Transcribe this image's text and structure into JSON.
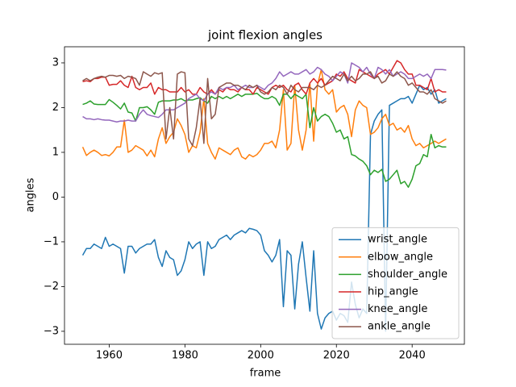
{
  "chart_data": {
    "type": "line",
    "title": "joint flexion angles",
    "xlabel": "frame",
    "ylabel": "angles",
    "x": [
      1953,
      1954,
      1955,
      1956,
      1957,
      1958,
      1959,
      1960,
      1961,
      1962,
      1963,
      1964,
      1965,
      1966,
      1967,
      1968,
      1969,
      1970,
      1971,
      1972,
      1973,
      1974,
      1975,
      1976,
      1977,
      1978,
      1979,
      1980,
      1981,
      1982,
      1983,
      1984,
      1985,
      1986,
      1987,
      1988,
      1989,
      1990,
      1991,
      1992,
      1993,
      1994,
      1995,
      1996,
      1997,
      1998,
      1999,
      2000,
      2001,
      2002,
      2003,
      2004,
      2005,
      2006,
      2007,
      2008,
      2009,
      2010,
      2011,
      2012,
      2013,
      2014,
      2015,
      2016,
      2017,
      2018,
      2019,
      2020,
      2021,
      2022,
      2023,
      2024,
      2025,
      2026,
      2027,
      2028,
      2029,
      2030,
      2031,
      2032,
      2033,
      2034,
      2035,
      2036,
      2037,
      2038,
      2039,
      2040,
      2041,
      2042,
      2043,
      2044,
      2045,
      2046,
      2047,
      2048,
      2049
    ],
    "series": [
      {
        "name": "wrist_angle",
        "color": "#1f77b4",
        "values": [
          -1.3,
          -1.15,
          -1.15,
          -1.05,
          -1.1,
          -1.15,
          -0.9,
          -1.1,
          -1.05,
          -1.1,
          -1.15,
          -1.7,
          -1.1,
          -1.1,
          -1.25,
          -1.15,
          -1.1,
          -1.05,
          -1.05,
          -0.95,
          -1.35,
          -1.55,
          -1.2,
          -1.35,
          -1.4,
          -1.75,
          -1.65,
          -1.4,
          -1.0,
          -1.15,
          -1.05,
          -1.0,
          -1.75,
          -1.0,
          -1.15,
          -1.1,
          -0.95,
          -0.9,
          -0.85,
          -0.95,
          -0.85,
          -0.8,
          -0.75,
          -0.8,
          -0.7,
          -0.72,
          -0.75,
          -0.85,
          -1.2,
          -1.3,
          -1.45,
          -1.3,
          -0.95,
          -2.45,
          -1.2,
          -1.3,
          -2.5,
          -1.5,
          -1.0,
          -1.8,
          -2.55,
          -1.2,
          -2.6,
          -2.95,
          -2.7,
          -2.6,
          -2.55,
          -2.75,
          -2.6,
          -2.65,
          -2.8,
          -1.9,
          -2.4,
          -2.7,
          -2.5,
          -2.6,
          1.4,
          1.7,
          1.85,
          1.95,
          -3.0,
          2.05,
          2.1,
          2.15,
          2.2,
          2.2,
          2.25,
          2.1,
          2.3,
          2.5,
          2.4,
          2.45,
          2.3,
          2.4,
          2.1,
          2.15,
          2.2
        ]
      },
      {
        "name": "elbow_angle",
        "color": "#ff7f0e",
        "values": [
          1.12,
          0.93,
          1.0,
          1.05,
          1.0,
          0.93,
          0.95,
          0.92,
          1.0,
          1.12,
          1.12,
          1.72,
          1.0,
          1.05,
          1.15,
          1.1,
          1.05,
          0.92,
          1.05,
          0.9,
          1.3,
          1.55,
          1.2,
          1.35,
          1.45,
          1.75,
          1.6,
          1.4,
          1.0,
          1.15,
          1.1,
          1.45,
          2.2,
          1.2,
          1.0,
          0.85,
          1.1,
          1.05,
          1.0,
          0.95,
          1.05,
          1.1,
          0.9,
          0.85,
          0.95,
          0.9,
          0.95,
          1.05,
          1.2,
          1.2,
          1.25,
          1.1,
          1.5,
          2.4,
          1.05,
          1.2,
          2.5,
          1.5,
          1.05,
          1.5,
          2.55,
          1.25,
          2.5,
          2.85,
          2.4,
          2.3,
          2.4,
          1.9,
          2.0,
          2.05,
          1.85,
          1.35,
          1.95,
          2.15,
          2.05,
          2.0,
          1.4,
          1.45,
          1.55,
          1.75,
          1.85,
          1.6,
          1.65,
          1.5,
          1.55,
          1.45,
          1.6,
          1.3,
          1.15,
          1.2,
          1.1,
          1.15,
          1.2,
          1.25,
          1.2,
          1.25,
          1.3
        ]
      },
      {
        "name": "shoulder_angle",
        "color": "#2ca02c",
        "values": [
          2.07,
          2.1,
          2.15,
          2.08,
          2.07,
          2.07,
          2.07,
          2.18,
          2.12,
          2.05,
          1.97,
          2.1,
          1.9,
          1.88,
          1.7,
          2.0,
          2.0,
          2.02,
          1.95,
          1.85,
          2.12,
          2.15,
          2.15,
          2.15,
          2.17,
          2.17,
          2.2,
          2.15,
          2.17,
          2.17,
          2.2,
          2.22,
          2.15,
          2.1,
          2.25,
          2.2,
          2.25,
          2.2,
          2.25,
          2.2,
          2.25,
          2.3,
          2.25,
          2.3,
          2.3,
          2.3,
          2.32,
          2.25,
          2.2,
          2.2,
          2.25,
          2.2,
          2.05,
          2.3,
          2.3,
          2.2,
          2.3,
          2.25,
          2.2,
          2.3,
          1.55,
          2.0,
          1.7,
          1.8,
          1.85,
          1.8,
          1.65,
          1.45,
          1.5,
          1.3,
          1.35,
          0.95,
          0.92,
          0.85,
          0.8,
          0.7,
          0.5,
          0.6,
          0.55,
          0.62,
          0.35,
          0.4,
          0.5,
          0.6,
          0.3,
          0.35,
          0.22,
          0.4,
          0.7,
          0.75,
          0.95,
          0.9,
          1.4,
          1.1,
          1.15,
          1.12,
          1.12
        ]
      },
      {
        "name": "hip_angle",
        "color": "#d62728",
        "values": [
          2.58,
          2.6,
          2.58,
          2.65,
          2.65,
          2.68,
          2.68,
          2.5,
          2.52,
          2.52,
          2.6,
          2.5,
          2.45,
          2.7,
          2.45,
          2.4,
          2.45,
          2.45,
          2.55,
          2.3,
          2.45,
          2.4,
          2.4,
          2.35,
          2.35,
          2.35,
          2.45,
          2.35,
          2.4,
          2.3,
          2.3,
          2.45,
          2.35,
          2.3,
          2.4,
          2.3,
          2.4,
          2.35,
          2.45,
          2.4,
          2.4,
          2.35,
          2.45,
          2.4,
          2.4,
          2.3,
          2.45,
          2.4,
          2.35,
          2.3,
          2.45,
          2.5,
          2.45,
          2.5,
          2.4,
          2.35,
          2.5,
          2.55,
          2.4,
          2.3,
          2.55,
          2.65,
          2.55,
          2.65,
          2.5,
          2.55,
          2.6,
          2.75,
          2.7,
          2.8,
          2.65,
          2.6,
          2.55,
          2.85,
          2.8,
          2.75,
          2.7,
          2.65,
          2.75,
          2.8,
          2.85,
          2.75,
          2.9,
          3.05,
          3.0,
          2.85,
          2.75,
          2.75,
          2.5,
          2.5,
          2.45,
          2.4,
          2.65,
          2.35,
          2.4,
          2.35,
          2.35
        ]
      },
      {
        "name": "knee_angle",
        "color": "#9467bd",
        "values": [
          1.8,
          1.75,
          1.75,
          1.73,
          1.75,
          1.73,
          1.72,
          1.72,
          1.7,
          1.68,
          1.7,
          1.7,
          1.72,
          1.7,
          1.7,
          1.85,
          1.95,
          1.85,
          1.82,
          1.8,
          1.78,
          1.85,
          1.95,
          1.95,
          1.95,
          2.0,
          2.05,
          2.1,
          2.2,
          2.25,
          2.3,
          2.2,
          2.15,
          2.3,
          2.35,
          2.3,
          2.45,
          2.4,
          2.45,
          2.45,
          2.5,
          2.4,
          2.45,
          2.5,
          2.45,
          2.45,
          2.5,
          2.45,
          2.4,
          2.5,
          2.55,
          2.65,
          2.8,
          2.7,
          2.75,
          2.8,
          2.75,
          2.75,
          2.8,
          2.85,
          2.75,
          2.8,
          2.9,
          2.85,
          2.75,
          2.7,
          2.6,
          2.7,
          2.8,
          2.75,
          2.55,
          3.0,
          2.95,
          2.9,
          2.8,
          2.9,
          2.75,
          2.65,
          2.9,
          2.85,
          2.75,
          2.85,
          2.7,
          2.75,
          2.8,
          2.75,
          2.65,
          2.65,
          2.7,
          2.75,
          2.7,
          2.75,
          2.65,
          2.85,
          2.85,
          2.85,
          2.84
        ]
      },
      {
        "name": "ankle_angle",
        "color": "#8c564b",
        "values": [
          2.6,
          2.65,
          2.6,
          2.65,
          2.68,
          2.7,
          2.68,
          2.72,
          2.72,
          2.7,
          2.72,
          2.65,
          2.7,
          2.68,
          2.65,
          2.5,
          2.8,
          2.75,
          2.7,
          2.78,
          2.75,
          2.78,
          1.3,
          2.0,
          1.3,
          2.75,
          2.8,
          2.78,
          1.3,
          1.15,
          1.55,
          2.2,
          1.2,
          2.65,
          1.75,
          1.85,
          2.45,
          2.5,
          2.55,
          2.55,
          2.5,
          2.5,
          2.45,
          2.4,
          2.5,
          2.45,
          2.5,
          2.35,
          2.3,
          2.35,
          2.45,
          2.4,
          2.5,
          2.45,
          2.3,
          2.5,
          2.4,
          2.35,
          2.45,
          2.45,
          2.45,
          2.4,
          2.5,
          2.45,
          2.5,
          2.6,
          2.7,
          2.65,
          2.6,
          2.75,
          2.6,
          2.7,
          2.6,
          2.65,
          2.75,
          2.75,
          2.8,
          2.65,
          2.7,
          2.55,
          2.6,
          2.75,
          2.7,
          2.8,
          2.7,
          2.65,
          2.5,
          2.55,
          2.45,
          2.35,
          2.35,
          2.3,
          2.4,
          2.2,
          2.15,
          2.1,
          2.15
        ]
      }
    ],
    "xlim": [
      1948.2,
      2053.8
    ],
    "ylim": [
      -3.29,
      3.36
    ],
    "xticks": [
      1960,
      1980,
      2000,
      2020,
      2040
    ],
    "yticks": [
      {
        "value": -3,
        "label": "−3"
      },
      {
        "value": -2,
        "label": "−2"
      },
      {
        "value": -1,
        "label": "−1"
      },
      0,
      1,
      2,
      3
    ],
    "grid": false,
    "legend": "lower right"
  }
}
